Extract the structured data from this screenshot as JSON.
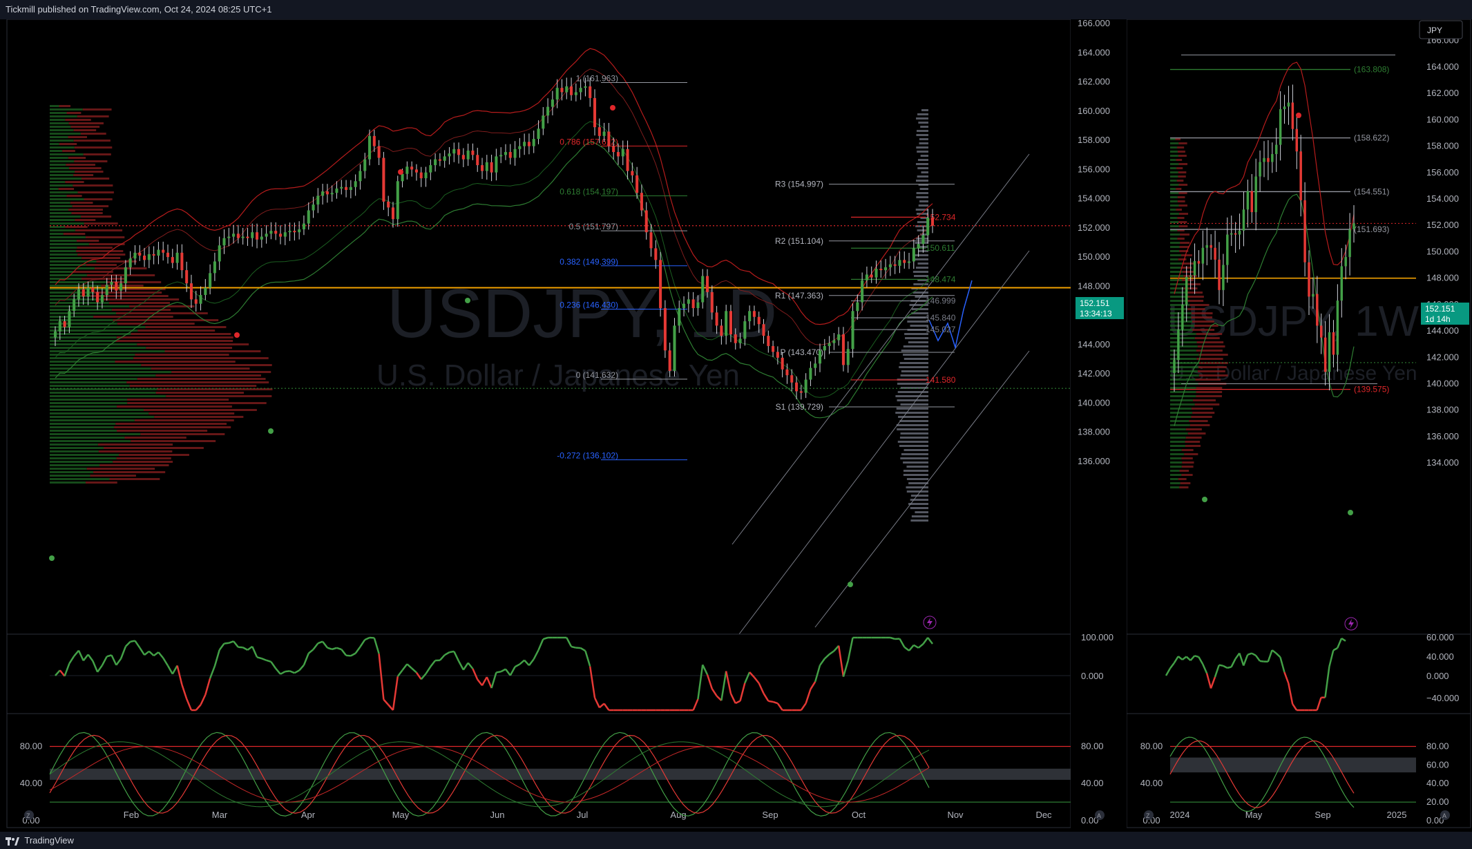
{
  "header": {
    "text": "Tickmill published on TradingView.com, Oct 24, 2024 08:25 UTC+1"
  },
  "footer": {
    "brand": "TradingView"
  },
  "colors": {
    "up": "#2e7d32",
    "down": "#e0272a",
    "bg": "#000000",
    "panel_border": "#2a2e39",
    "grid": "#1a1d24",
    "orange": "#f2a100",
    "price_tag": "#089981"
  },
  "chart_data": [
    {
      "type": "line",
      "panel": "daily",
      "symbol_watermark": "USDJPY, 1D",
      "symbol_description": "U.S. Dollar / Japanese Yen",
      "yaxis_ticks": [
        "166.000",
        "164.000",
        "162.000",
        "160.000",
        "158.000",
        "156.000",
        "154.000",
        "152.000",
        "150.000",
        "148.000",
        "146.000",
        "144.000",
        "142.000",
        "140.000",
        "138.000",
        "136.000"
      ],
      "xaxis_ticks": [
        "Feb",
        "Mar",
        "Apr",
        "May",
        "Jun",
        "Jul",
        "Aug",
        "Sep",
        "Oct",
        "Nov",
        "Dec"
      ],
      "ylim": [
        135.8,
        166.2
      ],
      "last_price": "152.151",
      "countdown": "13:34:13",
      "horizontal_level": 147.9,
      "fibonacci": [
        {
          "label": "1 (161.963)",
          "price": 161.963
        },
        {
          "label": "0.786 (157.612)",
          "price": 157.612
        },
        {
          "label": "0.618 (154.197)",
          "price": 154.197
        },
        {
          "label": "0.5 (151.797)",
          "price": 151.797
        },
        {
          "label": "0.382 (149.399)",
          "price": 149.399
        },
        {
          "label": "0.236 (146.430)",
          "price": 146.43
        },
        {
          "label": "0 (141.632)",
          "price": 141.632
        },
        {
          "label": "-0.272 (136.102)",
          "price": 136.102
        }
      ],
      "pivots": [
        {
          "label": "R3 (154.997)",
          "price": 154.997
        },
        {
          "label": "R2 (151.104)",
          "price": 151.104
        },
        {
          "label": "R1 (147.363)",
          "price": 147.363
        },
        {
          "label": "P (143.470)",
          "price": 143.47
        },
        {
          "label": "S1 (139.729)",
          "price": 139.729
        }
      ],
      "levels": [
        {
          "label": "152.734",
          "price": 152.734
        },
        {
          "label": "150.611",
          "price": 150.611
        },
        {
          "label": "148.474",
          "price": 148.474
        },
        {
          "label": "146.999",
          "price": 146.999
        },
        {
          "label": "145.840",
          "price": 145.84
        },
        {
          "label": "145.027",
          "price": 145.027
        },
        {
          "label": "141.580",
          "price": 141.58
        }
      ],
      "closes": [
        144.9,
        145.6,
        145.2,
        146.3,
        147.1,
        147.8,
        147.3,
        147.9,
        147.6,
        146.9,
        147.4,
        148.1,
        148.3,
        147.7,
        148.2,
        149.3,
        149.9,
        150.3,
        150.1,
        149.8,
        150.2,
        150.1,
        150.5,
        150.3,
        150.0,
        149.6,
        150.3,
        149.1,
        148.2,
        147.1,
        146.8,
        147.4,
        147.9,
        148.9,
        149.7,
        150.8,
        151.3,
        151.4,
        151.6,
        151.3,
        151.4,
        151.3,
        151.7,
        151.2,
        151.4,
        151.6,
        151.8,
        151.6,
        151.4,
        151.7,
        151.8,
        151.7,
        151.9,
        152.3,
        153.2,
        153.6,
        154.2,
        154.5,
        154.3,
        154.4,
        154.7,
        154.8,
        154.6,
        154.8,
        155.2,
        155.9,
        156.7,
        158.3,
        157.6,
        156.8,
        153.8,
        153.4,
        152.6,
        155.2,
        155.7,
        156.2,
        156.0,
        155.8,
        155.4,
        155.8,
        156.3,
        156.7,
        156.6,
        156.9,
        157.1,
        157.4,
        157.0,
        156.7,
        157.3,
        157.0,
        156.3,
        155.9,
        156.5,
        155.8,
        156.9,
        157.0,
        157.2,
        156.8,
        157.4,
        157.6,
        157.9,
        157.6,
        158.1,
        158.8,
        159.7,
        160.3,
        160.8,
        161.6,
        161.3,
        161.7,
        161.1,
        161.3,
        161.6,
        161.7,
        160.9,
        158.9,
        158.3,
        158.6,
        157.6,
        157.2,
        156.9,
        157.4,
        155.9,
        155.6,
        154.4,
        153.2,
        151.7,
        150.6,
        149.8,
        146.5,
        143.6,
        142.2,
        145.3,
        146.5,
        146.8,
        147.1,
        146.5,
        146.9,
        148.7,
        147.6,
        146.2,
        145.3,
        144.6,
        146.3,
        144.7,
        144.1,
        144.4,
        145.6,
        146.3,
        145.9,
        145.4,
        144.6,
        143.9,
        143.5,
        143.1,
        142.3,
        141.9,
        141.4,
        140.8,
        140.7,
        141.6,
        142.4,
        142.7,
        143.6,
        143.9,
        144.1,
        144.3,
        144.7,
        142.6,
        143.7,
        146.3,
        146.9,
        148.4,
        148.8,
        148.6,
        149.2,
        149.1,
        149.3,
        149.5,
        149.4,
        149.8,
        149.6,
        149.7,
        150.6,
        150.9,
        151.5,
        152.7,
        152.15
      ],
      "series": [
        {
          "name": "",
          "values": []
        }
      ]
    },
    {
      "type": "line",
      "panel": "weekly",
      "symbol_watermark": "USDJPY, 1W",
      "symbol_description": "U.S. Dollar / Japanese Yen",
      "yaxis_ticks": [
        "166.000",
        "164.000",
        "162.000",
        "160.000",
        "158.000",
        "156.000",
        "154.000",
        "152.000",
        "150.000",
        "148.000",
        "146.000",
        "144.000",
        "142.000",
        "140.000",
        "138.000",
        "136.000",
        "134.000"
      ],
      "xaxis_ticks": [
        "2024",
        "May",
        "Sep",
        "2025"
      ],
      "ylim": [
        133.8,
        167.5
      ],
      "currency_badge": "JPY",
      "last_price": "152.151",
      "countdown": "1d 14h",
      "levels": [
        {
          "label": "(163.808)",
          "price": 163.808
        },
        {
          "label": "(158.622)",
          "price": 158.622
        },
        {
          "label": "(154.551)",
          "price": 154.551
        },
        {
          "label": "(151.693)",
          "price": 151.693
        },
        {
          "label": "(139.575)",
          "price": 139.575
        }
      ],
      "closes": [
        141.8,
        144.1,
        146.0,
        148.1,
        148.2,
        149.3,
        149.1,
        150.3,
        150.5,
        150.3,
        149.4,
        147.1,
        149.0,
        151.3,
        151.4,
        151.3,
        151.6,
        153.2,
        154.6,
        153.0,
        155.7,
        156.8,
        157.1,
        156.8,
        157.4,
        158.1,
        160.8,
        161.0,
        161.3,
        159.3,
        157.6,
        153.9,
        149.2,
        146.6,
        146.8,
        144.4,
        143.5,
        140.9,
        143.9,
        142.2,
        146.3,
        148.9,
        149.6,
        151.7,
        152.15
      ]
    },
    {
      "type": "line",
      "panel": "daily-momentum",
      "yaxis_ticks": [
        "100.000",
        "0.000"
      ]
    },
    {
      "type": "line",
      "panel": "daily-stochastic",
      "yaxis_ticks": [
        "80.00",
        "40.00",
        "0.00"
      ]
    },
    {
      "type": "line",
      "panel": "weekly-momentum",
      "yaxis_ticks": [
        "60.000",
        "40.000",
        "0.000",
        "−40.000"
      ]
    },
    {
      "type": "line",
      "panel": "weekly-stochastic",
      "yaxis_ticks": [
        "80.00",
        "60.00",
        "40.00",
        "20.00",
        "0.00"
      ],
      "left_ticks": [
        "80.00",
        "40.00",
        "0.00"
      ]
    }
  ]
}
